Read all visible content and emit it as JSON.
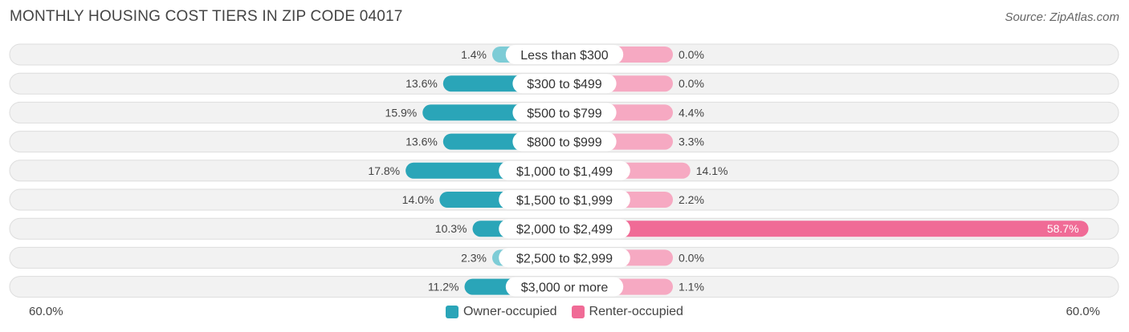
{
  "title": "MONTHLY HOUSING COST TIERS IN ZIP CODE 04017",
  "source": "Source: ZipAtlas.com",
  "axis": {
    "left_label": "60.0%",
    "right_label": "60.0%"
  },
  "legend": {
    "owner_label": "Owner-occupied",
    "renter_label": "Renter-occupied"
  },
  "colors": {
    "owner_strong": "#2aa5b8",
    "owner_light": "#7dccd6",
    "renter_strong": "#f06b96",
    "renter_light": "#f6a9c2",
    "row_bg": "#f2f2f2",
    "row_border": "#dddddd"
  },
  "chart_data": {
    "type": "bar",
    "orientation": "diverging-horizontal",
    "xlim": [
      -60,
      60
    ],
    "categories": [
      "Less than $300",
      "$300 to $499",
      "$500 to $799",
      "$800 to $999",
      "$1,000 to $1,499",
      "$1,500 to $1,999",
      "$2,000 to $2,499",
      "$2,500 to $2,999",
      "$3,000 or more"
    ],
    "series": [
      {
        "name": "Owner-occupied",
        "values": [
          1.4,
          13.6,
          15.9,
          13.6,
          17.8,
          14.0,
          10.3,
          2.3,
          11.2
        ],
        "labels": [
          "1.4%",
          "13.6%",
          "15.9%",
          "13.6%",
          "17.8%",
          "14.0%",
          "10.3%",
          "2.3%",
          "11.2%"
        ]
      },
      {
        "name": "Renter-occupied",
        "values": [
          0.0,
          0.0,
          4.4,
          3.3,
          14.1,
          2.2,
          58.7,
          0.0,
          1.1
        ],
        "labels": [
          "0.0%",
          "0.0%",
          "4.4%",
          "3.3%",
          "14.1%",
          "2.2%",
          "58.7%",
          "0.0%",
          "1.1%"
        ]
      }
    ]
  }
}
